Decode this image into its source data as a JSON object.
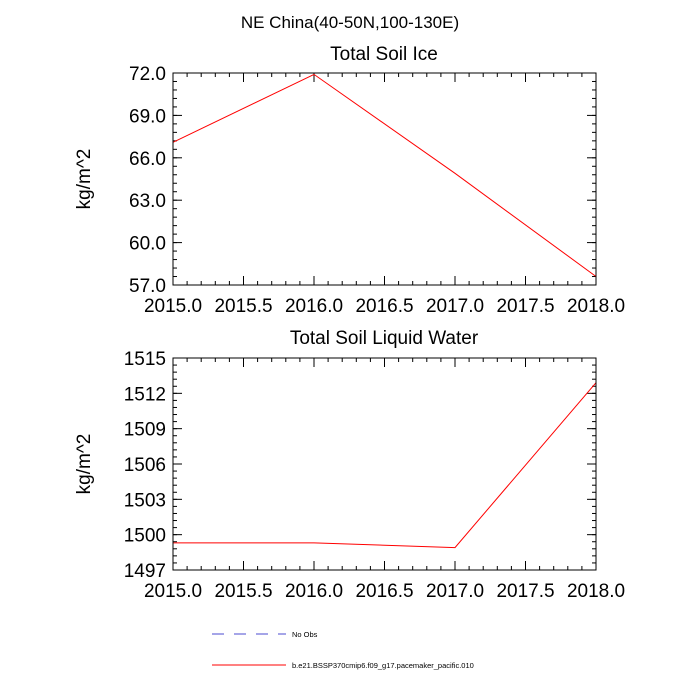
{
  "figure": {
    "title": "NE China(40-50N,100-130E)"
  },
  "chart_data": [
    {
      "type": "line",
      "title": "Total Soil Ice",
      "xlabel": "",
      "ylabel": "kg/m^2",
      "xlim": [
        2015.0,
        2018.0
      ],
      "ylim": [
        57.0,
        72.0
      ],
      "x_ticks": [
        2015.0,
        2015.5,
        2016.0,
        2016.5,
        2017.0,
        2017.5,
        2018.0
      ],
      "x_tick_labels": [
        "2015.0",
        "2015.5",
        "2016.0",
        "2016.5",
        "2017.0",
        "2017.5",
        "2018.0"
      ],
      "y_ticks": [
        57.0,
        60.0,
        63.0,
        66.0,
        69.0,
        72.0
      ],
      "y_tick_labels": [
        "57.0",
        "60.0",
        "63.0",
        "66.0",
        "69.0",
        "72.0"
      ],
      "y_minor_step": 0.6,
      "x_minor_step": 0.1,
      "series": [
        {
          "name": "b.e21.BSSP370cmip6.f09_g17.pacemaker_pacific.010",
          "color": "#ff0000",
          "x": [
            2015,
            2016,
            2017,
            2018
          ],
          "y": [
            67.1,
            71.9,
            64.9,
            57.6
          ]
        }
      ]
    },
    {
      "type": "line",
      "title": "Total Soil Liquid Water",
      "xlabel": "",
      "ylabel": "kg/m^2",
      "xlim": [
        2015.0,
        2018.0
      ],
      "ylim": [
        1497,
        1515
      ],
      "x_ticks": [
        2015.0,
        2015.5,
        2016.0,
        2016.5,
        2017.0,
        2017.5,
        2018.0
      ],
      "x_tick_labels": [
        "2015.0",
        "2015.5",
        "2016.0",
        "2016.5",
        "2017.0",
        "2017.5",
        "2018.0"
      ],
      "y_ticks": [
        1497,
        1500,
        1503,
        1506,
        1509,
        1512,
        1515
      ],
      "y_tick_labels": [
        "1497",
        "1500",
        "1503",
        "1506",
        "1509",
        "1512",
        "1515"
      ],
      "y_minor_step": 0.6,
      "x_minor_step": 0.1,
      "series": [
        {
          "name": "b.e21.BSSP370cmip6.f09_g17.pacemaker_pacific.010",
          "color": "#ff0000",
          "x": [
            2015,
            2016,
            2017,
            2018
          ],
          "y": [
            1499.3,
            1499.3,
            1498.9,
            1512.9
          ]
        }
      ]
    }
  ],
  "legend": {
    "entries": [
      {
        "label": "No Obs",
        "color": "#4b4bd2",
        "dash": true
      },
      {
        "label": "b.e21.BSSP370cmip6.f09_g17.pacemaker_pacific.010",
        "color": "#ff0000",
        "dash": false
      }
    ]
  }
}
